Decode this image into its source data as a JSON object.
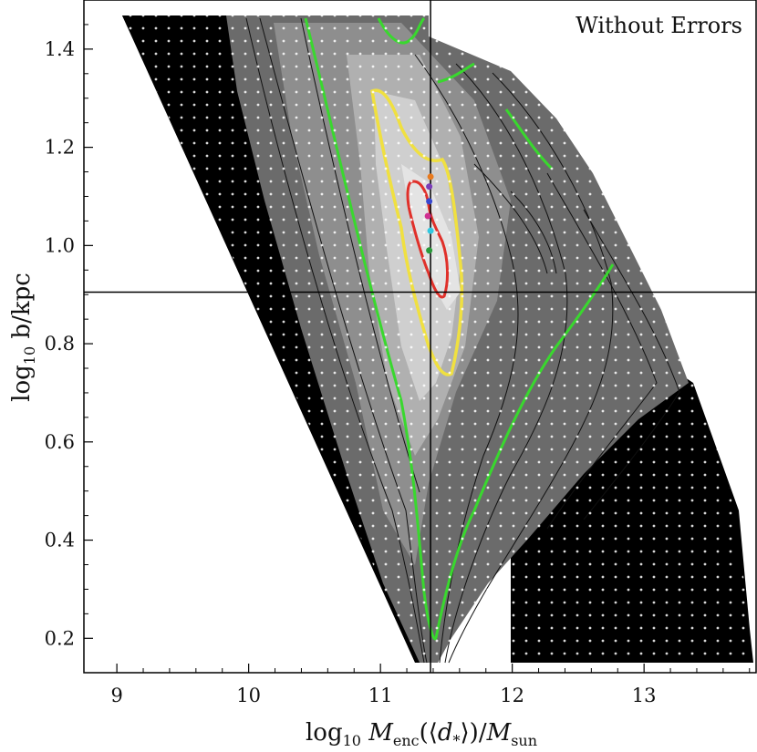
{
  "chart_data": {
    "type": "contour",
    "title": "",
    "annotation": "Without Errors",
    "xlabel": "log10 Menc(⟨d*⟩)/Msun",
    "ylabel": "log10 b/kpc",
    "xlim": [
      8.75,
      13.85
    ],
    "ylim": [
      0.13,
      1.5
    ],
    "xticks": [
      9,
      10,
      11,
      12,
      13
    ],
    "yticks": [
      0.2,
      0.4,
      0.6,
      0.8,
      1.0,
      1.2,
      1.4
    ],
    "ytick_labels": [
      "0.2",
      "0.4",
      "0.6",
      "0.8",
      "1.0",
      "1.2",
      "1.4"
    ],
    "crosshair": {
      "x": 11.38,
      "y": 0.905
    },
    "grid": false,
    "contour_levels": [
      {
        "name": "red",
        "color": "#e0302a"
      },
      {
        "name": "yellow",
        "color": "#f0e040"
      },
      {
        "name": "green",
        "color": "#39d82e"
      }
    ],
    "markers": [
      {
        "x": 11.38,
        "y": 1.14,
        "color": "#e87a1e"
      },
      {
        "x": 11.37,
        "y": 1.12,
        "color": "#7a3db8"
      },
      {
        "x": 11.37,
        "y": 1.09,
        "color": "#3848d0"
      },
      {
        "x": 11.36,
        "y": 1.06,
        "color": "#d03090"
      },
      {
        "x": 11.38,
        "y": 1.03,
        "color": "#30c8e0"
      },
      {
        "x": 11.37,
        "y": 0.99,
        "color": "#2a9a3a"
      }
    ],
    "colors": {
      "background_region": "#000000",
      "contour_lines": "#111111",
      "grid_dots": "#ffffff"
    }
  }
}
